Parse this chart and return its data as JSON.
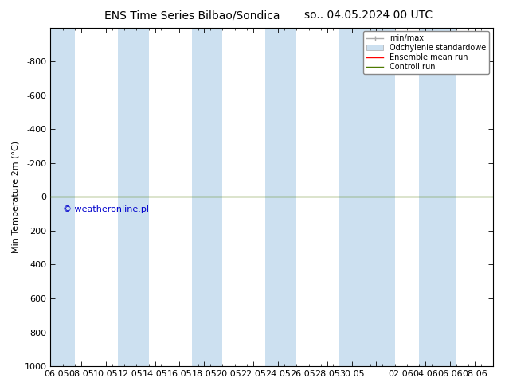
{
  "title_left": "ENS Time Series Bilbao/Sondica",
  "title_right": "so.. 04.05.2024 00 UTC",
  "ylabel": "Min Temperature 2m (°C)",
  "ylim_top": -1000,
  "ylim_bottom": 1000,
  "yticks": [
    -800,
    -600,
    -400,
    -200,
    0,
    200,
    400,
    600,
    800,
    1000
  ],
  "x_labels": [
    "06.05",
    "08.05",
    "10.05",
    "12.05",
    "14.05",
    "16.05",
    "18.05",
    "20.05",
    "22.05",
    "24.05",
    "26.05",
    "28.05",
    "30.05",
    "",
    "02.06",
    "04.06",
    "06.06",
    "08.06"
  ],
  "x_positions": [
    0,
    2,
    4,
    6,
    8,
    10,
    12,
    14,
    16,
    18,
    20,
    22,
    24,
    26,
    28,
    30,
    32,
    34
  ],
  "xmin": -0.5,
  "xmax": 35.5,
  "blue_bands": [
    [
      -0.5,
      1.5
    ],
    [
      4.5,
      7.5
    ],
    [
      11.5,
      13.5
    ],
    [
      17.5,
      19.5
    ],
    [
      23.5,
      26.5
    ],
    [
      27.5,
      28.5
    ],
    [
      28.5,
      29.0
    ],
    [
      29.5,
      32.5
    ]
  ],
  "green_line_y": 0,
  "copyright": "© weatheronline.pl",
  "legend_items": [
    "min/max",
    "Odchylenie standardowe",
    "Ensemble mean run",
    "Controll run"
  ],
  "legend_colors": [
    "#aaaaaa",
    "#c8dff0",
    "#ff0000",
    "#4d7a00"
  ],
  "background_color": "#ffffff",
  "plot_bg_color": "#ffffff",
  "band_color": "#cce0f0",
  "title_fontsize": 10,
  "axis_fontsize": 8,
  "copyright_color": "#0000cc",
  "copyright_fontsize": 8
}
